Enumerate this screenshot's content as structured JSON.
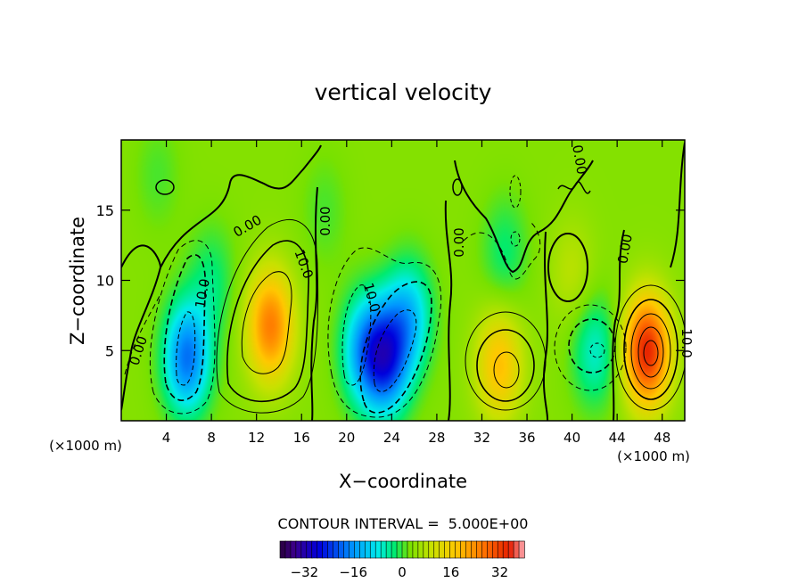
{
  "chart_data": {
    "type": "heatmap",
    "title": "vertical velocity",
    "xlabel": "X−coordinate",
    "ylabel": "Z−coordinate",
    "x_unit_label": "(×1000 m)",
    "x_unit_label_right": "(×1000 m)",
    "xlim": [
      0,
      50
    ],
    "ylim": [
      0,
      20
    ],
    "x_ticks": [
      4,
      8,
      12,
      16,
      20,
      24,
      28,
      32,
      36,
      40,
      44,
      48
    ],
    "y_ticks": [
      5,
      10,
      15
    ],
    "contour_interval_text": "CONTOUR INTERVAL =  5.000E+00",
    "contour_labels": [
      "0.00",
      "0.00",
      "0.00",
      "0.00",
      "0.00",
      "0.00",
      "10.0",
      "10.0",
      "10.0",
      "10.0"
    ],
    "colorbar": {
      "range": [
        -40,
        40
      ],
      "ticks": [
        -32,
        -16,
        0,
        16,
        32
      ],
      "tick_labels": [
        "−32",
        "−16",
        "0",
        "16",
        "32"
      ]
    },
    "features": [
      {
        "x": 5.8,
        "z": 4.5,
        "value": -22
      },
      {
        "x": 13.2,
        "z": 6.8,
        "value": 22
      },
      {
        "x": 21.5,
        "z": 5.0,
        "value": -16
      },
      {
        "x": 23.5,
        "z": 4.5,
        "value": -25
      },
      {
        "x": 25.5,
        "z": 7.5,
        "value": -14
      },
      {
        "x": 33.5,
        "z": 4.0,
        "value": 15
      },
      {
        "x": 42.0,
        "z": 5.0,
        "value": -10
      },
      {
        "x": 46.6,
        "z": 5.0,
        "value": 31
      },
      {
        "x": 40.0,
        "z": 10.5,
        "value": 5
      },
      {
        "x": 3.2,
        "z": 17.5,
        "value": -3
      },
      {
        "x": 34.0,
        "z": 12.0,
        "value": -6
      },
      {
        "x": 18.0,
        "z": 15.0,
        "value": -3
      },
      {
        "x": 8.0,
        "z": 10.0,
        "value": -6
      }
    ]
  }
}
